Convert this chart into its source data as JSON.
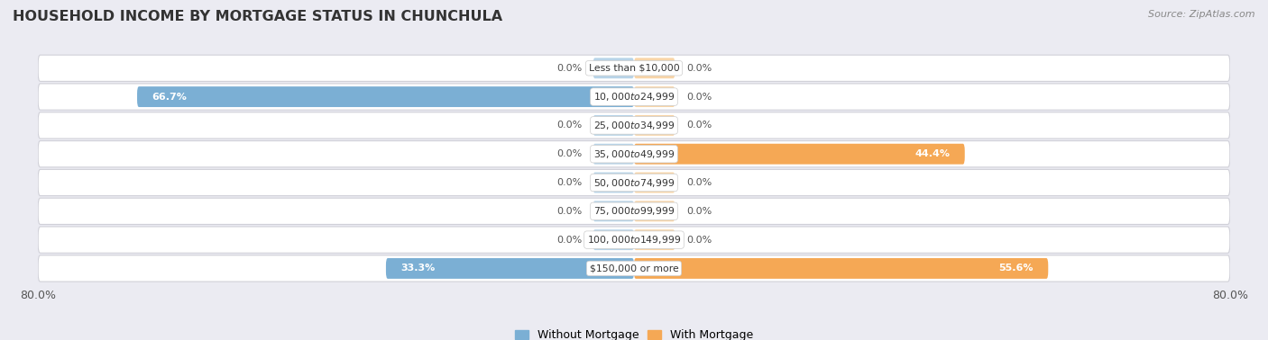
{
  "title": "HOUSEHOLD INCOME BY MORTGAGE STATUS IN CHUNCHULA",
  "source": "Source: ZipAtlas.com",
  "categories": [
    "Less than $10,000",
    "$10,000 to $24,999",
    "$25,000 to $34,999",
    "$35,000 to $49,999",
    "$50,000 to $74,999",
    "$75,000 to $99,999",
    "$100,000 to $149,999",
    "$150,000 or more"
  ],
  "without_mortgage": [
    0.0,
    66.7,
    0.0,
    0.0,
    0.0,
    0.0,
    0.0,
    33.3
  ],
  "with_mortgage": [
    0.0,
    0.0,
    0.0,
    44.4,
    0.0,
    0.0,
    0.0,
    55.6
  ],
  "without_mortgage_color": "#7bafd4",
  "with_mortgage_color": "#f5a855",
  "without_mortgage_light": "#b8d4e8",
  "with_mortgage_light": "#f8d5a8",
  "stub_size": 5.5,
  "xlim_left": -80,
  "xlim_right": 80,
  "background_color": "#ebebf2",
  "row_bg_color": "#ffffff",
  "title_fontsize": 11.5,
  "label_fontsize": 8,
  "axis_fontsize": 9,
  "legend_fontsize": 9
}
